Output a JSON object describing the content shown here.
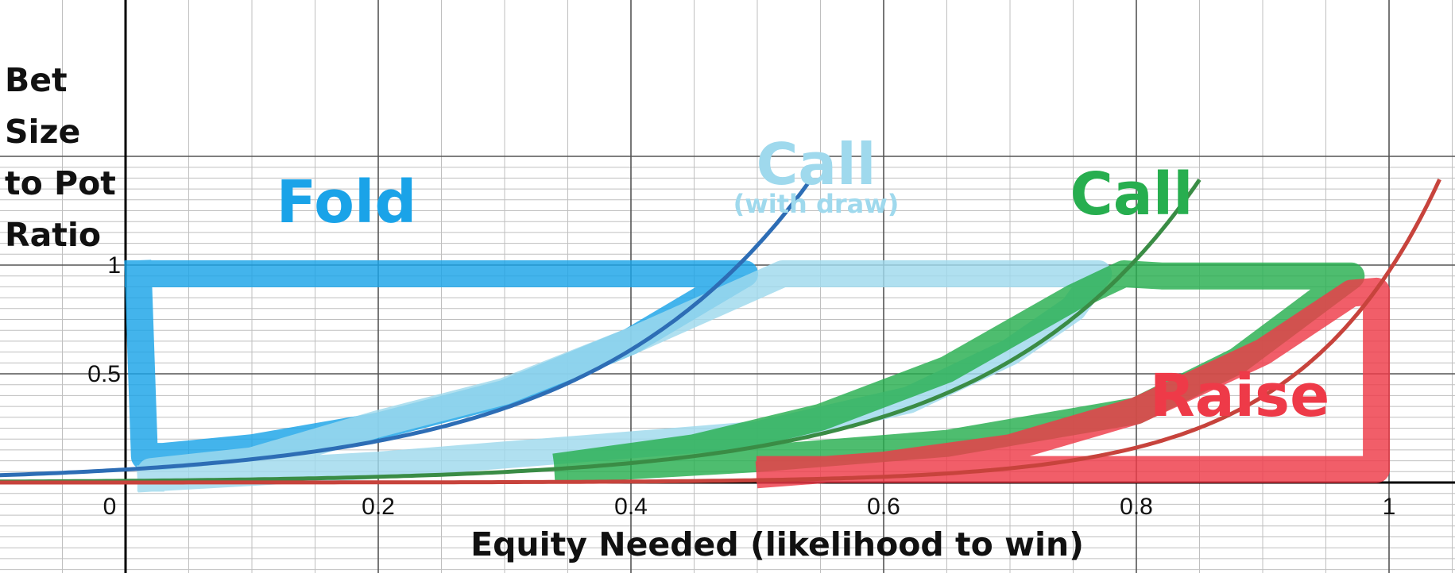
{
  "chart_data": {
    "type": "line",
    "title": "",
    "xlabel": "Equity Needed (likelihood to win)",
    "ylabel_lines": [
      "Bet",
      "Size",
      "to Pot",
      "Ratio"
    ],
    "xlim": [
      -0.2,
      1.05
    ],
    "ylim": [
      -0.2,
      1.1
    ],
    "grid": true,
    "x_ticks": [
      {
        "value": 0,
        "label": "0"
      },
      {
        "value": 0.2,
        "label": "0.2"
      },
      {
        "value": 0.4,
        "label": "0.4"
      },
      {
        "value": 0.6,
        "label": "0.6"
      },
      {
        "value": 0.8,
        "label": "0.8"
      },
      {
        "value": 1,
        "label": "1"
      }
    ],
    "y_ticks": [
      {
        "value": 0.5,
        "label": "0.5"
      },
      {
        "value": 1,
        "label": "1"
      }
    ],
    "series": [
      {
        "color": "#2d6db5",
        "function": "y = 0.06 * exp(5.8 * x)"
      },
      {
        "color": "#3a8c45",
        "function": "y = 0.0078 * exp(6.1 * x)"
      },
      {
        "color": "#c7433c",
        "function": "y = 0.00012 * exp(9.0 * x)"
      }
    ],
    "regions": [
      {
        "label": "Fold",
        "sub_label": "",
        "color": "#1aa3e8",
        "outline": [
          [
            0.01,
            0.96
          ],
          [
            0.49,
            0.96
          ],
          [
            0.49,
            0.96
          ],
          [
            0.4,
            0.65
          ],
          [
            0.3,
            0.41
          ],
          [
            0.2,
            0.26
          ],
          [
            0.1,
            0.16
          ],
          [
            0.03,
            0.12
          ],
          [
            0.015,
            0.12
          ],
          [
            0.01,
            0.96
          ]
        ]
      },
      {
        "label": "Call",
        "sub_label": "(with draw)",
        "color": "#9fd9ed",
        "outline": [
          [
            0.02,
            0.02
          ],
          [
            0.2,
            0.08
          ],
          [
            0.35,
            0.15
          ],
          [
            0.5,
            0.22
          ],
          [
            0.62,
            0.38
          ],
          [
            0.7,
            0.6
          ],
          [
            0.75,
            0.8
          ],
          [
            0.77,
            0.96
          ],
          [
            0.52,
            0.96
          ],
          [
            0.4,
            0.65
          ],
          [
            0.3,
            0.42
          ],
          [
            0.2,
            0.27
          ],
          [
            0.1,
            0.1
          ],
          [
            0.02,
            0.05
          ],
          [
            0.02,
            0.02
          ]
        ]
      },
      {
        "label": "Call",
        "sub_label": "",
        "color": "#27ae4f",
        "outline": [
          [
            0.35,
            0.06
          ],
          [
            0.5,
            0.11
          ],
          [
            0.65,
            0.18
          ],
          [
            0.8,
            0.33
          ],
          [
            0.88,
            0.56
          ],
          [
            0.97,
            0.95
          ],
          [
            0.82,
            0.95
          ],
          [
            0.79,
            0.96
          ],
          [
            0.75,
            0.85
          ],
          [
            0.65,
            0.52
          ],
          [
            0.55,
            0.3
          ],
          [
            0.45,
            0.16
          ],
          [
            0.35,
            0.08
          ]
        ]
      },
      {
        "label": "Raise",
        "sub_label": "",
        "color": "#ee3a48",
        "outline": [
          [
            0.51,
            0.04
          ],
          [
            0.6,
            0.08
          ],
          [
            0.7,
            0.16
          ],
          [
            0.8,
            0.33
          ],
          [
            0.9,
            0.6
          ],
          [
            0.97,
            0.87
          ],
          [
            0.99,
            0.88
          ],
          [
            0.99,
            0.07
          ],
          [
            0.99,
            0.06
          ],
          [
            0.51,
            0.06
          ]
        ]
      }
    ]
  }
}
